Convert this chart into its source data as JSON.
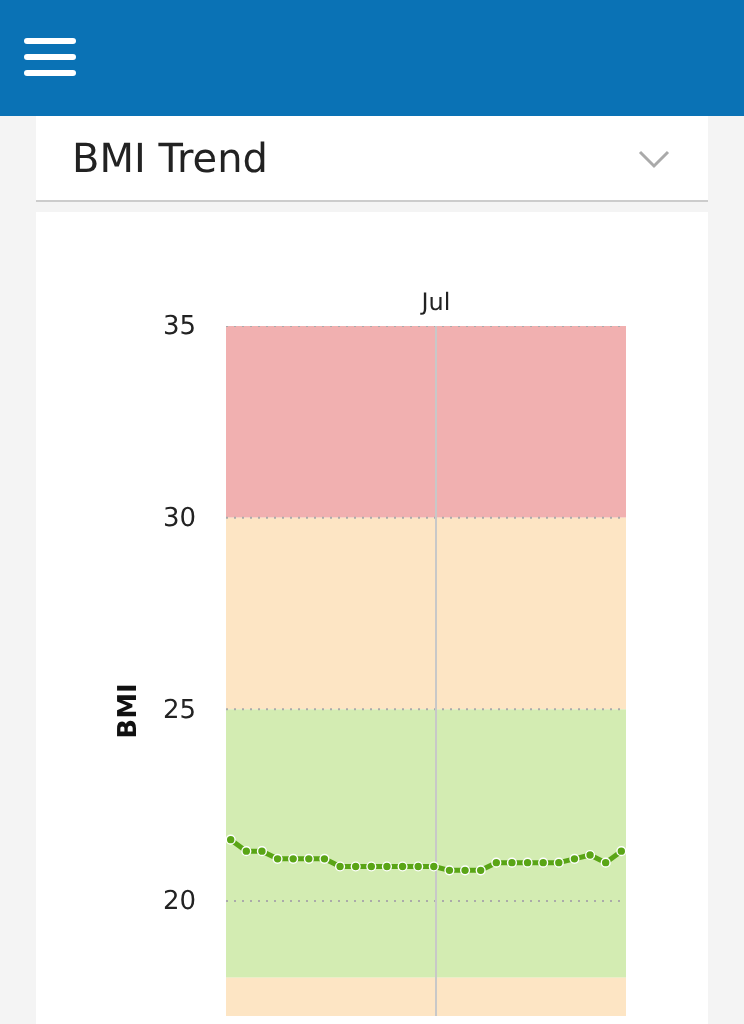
{
  "chart_data": {
    "type": "line",
    "title": "BMI Trend",
    "ylabel": "BMI",
    "categories": [
      null,
      null,
      null,
      null,
      null,
      null,
      null,
      null,
      null,
      null,
      null,
      null,
      null,
      null,
      null,
      null,
      null,
      null,
      null,
      null,
      null,
      null,
      null,
      null,
      null,
      null
    ],
    "series": [
      {
        "color": "#5aa516",
        "values": [
          21.6,
          21.3,
          21.3,
          21.1,
          21.1,
          21.1,
          21.1,
          20.9,
          20.9,
          20.9,
          20.9,
          20.9,
          20.9,
          20.9,
          20.8,
          20.8,
          20.8,
          21.0,
          21.0,
          21.0,
          21.0,
          21.0,
          21.1,
          21.2,
          21.0,
          21.3
        ]
      }
    ],
    "annotations": [
      "Jul"
    ],
    "ylim": [
      17,
      35
    ],
    "yticks": [
      20,
      25,
      30,
      35
    ],
    "grid": "y",
    "marker": "circle",
    "line_style": "solid",
    "bands": [
      {
        "axis": "y",
        "from": 30,
        "to": 35,
        "color": "#f1b0b0"
      },
      {
        "axis": "y",
        "from": 25,
        "to": 30,
        "color": "#fde5c4"
      },
      {
        "axis": "y",
        "from": 18,
        "to": 25,
        "color": "#d3ecb2"
      },
      {
        "axis": "y",
        "from": 17,
        "to": 18,
        "color": "#fde5c4"
      }
    ]
  }
}
